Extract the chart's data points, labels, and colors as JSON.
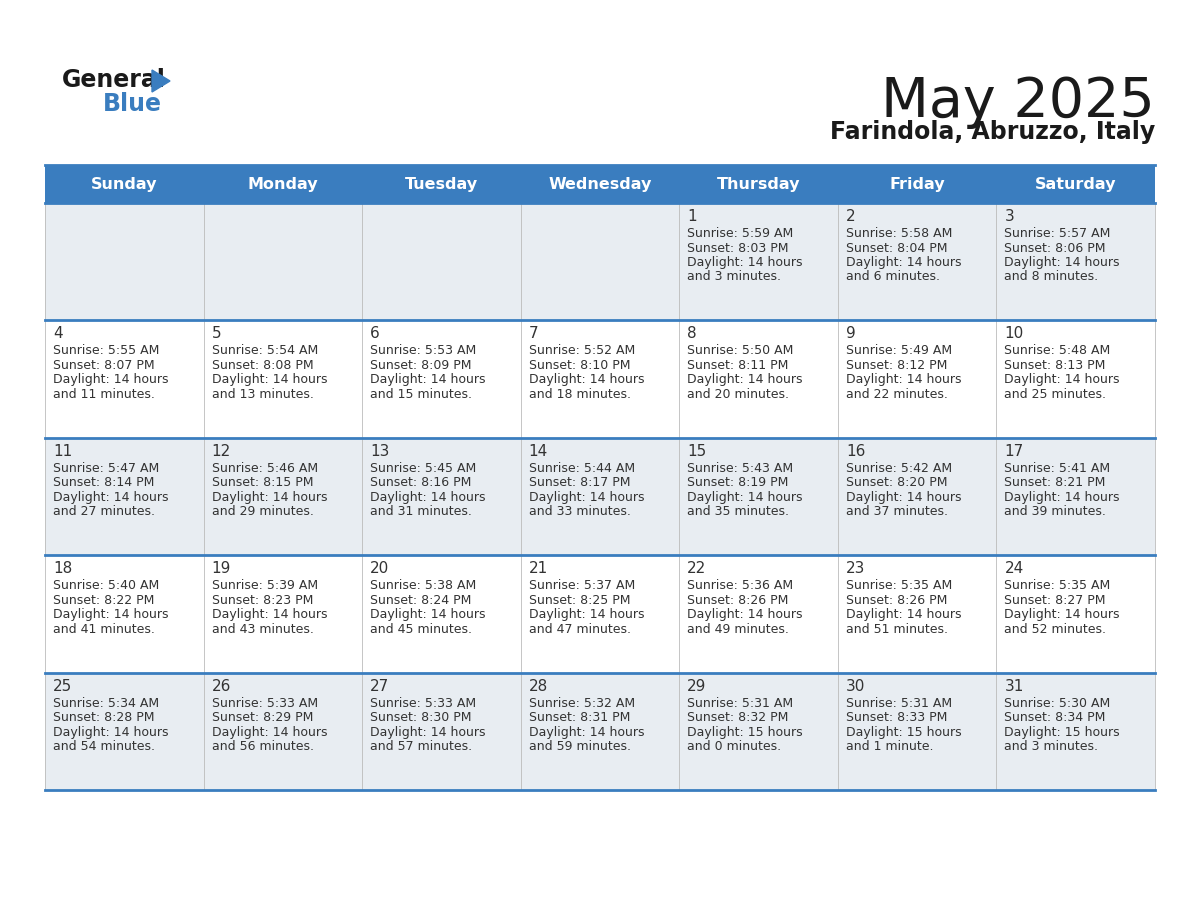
{
  "title": "May 2025",
  "subtitle": "Farindola, Abruzzo, Italy",
  "header_color": "#3a7dbf",
  "header_text_color": "#ffffff",
  "background_color": "#ffffff",
  "cell_bg_even": "#e8edf2",
  "cell_bg_odd": "#ffffff",
  "day_headers": [
    "Sunday",
    "Monday",
    "Tuesday",
    "Wednesday",
    "Thursday",
    "Friday",
    "Saturday"
  ],
  "title_color": "#1a1a1a",
  "subtitle_color": "#1a1a1a",
  "line_color": "#3a7dbf",
  "text_color": "#333333",
  "days": [
    {
      "date": 1,
      "col": 4,
      "row": 0,
      "sunrise": "5:59 AM",
      "sunset": "8:03 PM",
      "daylight": "14 hours",
      "daylight2": "and 3 minutes."
    },
    {
      "date": 2,
      "col": 5,
      "row": 0,
      "sunrise": "5:58 AM",
      "sunset": "8:04 PM",
      "daylight": "14 hours",
      "daylight2": "and 6 minutes."
    },
    {
      "date": 3,
      "col": 6,
      "row": 0,
      "sunrise": "5:57 AM",
      "sunset": "8:06 PM",
      "daylight": "14 hours",
      "daylight2": "and 8 minutes."
    },
    {
      "date": 4,
      "col": 0,
      "row": 1,
      "sunrise": "5:55 AM",
      "sunset": "8:07 PM",
      "daylight": "14 hours",
      "daylight2": "and 11 minutes."
    },
    {
      "date": 5,
      "col": 1,
      "row": 1,
      "sunrise": "5:54 AM",
      "sunset": "8:08 PM",
      "daylight": "14 hours",
      "daylight2": "and 13 minutes."
    },
    {
      "date": 6,
      "col": 2,
      "row": 1,
      "sunrise": "5:53 AM",
      "sunset": "8:09 PM",
      "daylight": "14 hours",
      "daylight2": "and 15 minutes."
    },
    {
      "date": 7,
      "col": 3,
      "row": 1,
      "sunrise": "5:52 AM",
      "sunset": "8:10 PM",
      "daylight": "14 hours",
      "daylight2": "and 18 minutes."
    },
    {
      "date": 8,
      "col": 4,
      "row": 1,
      "sunrise": "5:50 AM",
      "sunset": "8:11 PM",
      "daylight": "14 hours",
      "daylight2": "and 20 minutes."
    },
    {
      "date": 9,
      "col": 5,
      "row": 1,
      "sunrise": "5:49 AM",
      "sunset": "8:12 PM",
      "daylight": "14 hours",
      "daylight2": "and 22 minutes."
    },
    {
      "date": 10,
      "col": 6,
      "row": 1,
      "sunrise": "5:48 AM",
      "sunset": "8:13 PM",
      "daylight": "14 hours",
      "daylight2": "and 25 minutes."
    },
    {
      "date": 11,
      "col": 0,
      "row": 2,
      "sunrise": "5:47 AM",
      "sunset": "8:14 PM",
      "daylight": "14 hours",
      "daylight2": "and 27 minutes."
    },
    {
      "date": 12,
      "col": 1,
      "row": 2,
      "sunrise": "5:46 AM",
      "sunset": "8:15 PM",
      "daylight": "14 hours",
      "daylight2": "and 29 minutes."
    },
    {
      "date": 13,
      "col": 2,
      "row": 2,
      "sunrise": "5:45 AM",
      "sunset": "8:16 PM",
      "daylight": "14 hours",
      "daylight2": "and 31 minutes."
    },
    {
      "date": 14,
      "col": 3,
      "row": 2,
      "sunrise": "5:44 AM",
      "sunset": "8:17 PM",
      "daylight": "14 hours",
      "daylight2": "and 33 minutes."
    },
    {
      "date": 15,
      "col": 4,
      "row": 2,
      "sunrise": "5:43 AM",
      "sunset": "8:19 PM",
      "daylight": "14 hours",
      "daylight2": "and 35 minutes."
    },
    {
      "date": 16,
      "col": 5,
      "row": 2,
      "sunrise": "5:42 AM",
      "sunset": "8:20 PM",
      "daylight": "14 hours",
      "daylight2": "and 37 minutes."
    },
    {
      "date": 17,
      "col": 6,
      "row": 2,
      "sunrise": "5:41 AM",
      "sunset": "8:21 PM",
      "daylight": "14 hours",
      "daylight2": "and 39 minutes."
    },
    {
      "date": 18,
      "col": 0,
      "row": 3,
      "sunrise": "5:40 AM",
      "sunset": "8:22 PM",
      "daylight": "14 hours",
      "daylight2": "and 41 minutes."
    },
    {
      "date": 19,
      "col": 1,
      "row": 3,
      "sunrise": "5:39 AM",
      "sunset": "8:23 PM",
      "daylight": "14 hours",
      "daylight2": "and 43 minutes."
    },
    {
      "date": 20,
      "col": 2,
      "row": 3,
      "sunrise": "5:38 AM",
      "sunset": "8:24 PM",
      "daylight": "14 hours",
      "daylight2": "and 45 minutes."
    },
    {
      "date": 21,
      "col": 3,
      "row": 3,
      "sunrise": "5:37 AM",
      "sunset": "8:25 PM",
      "daylight": "14 hours",
      "daylight2": "and 47 minutes."
    },
    {
      "date": 22,
      "col": 4,
      "row": 3,
      "sunrise": "5:36 AM",
      "sunset": "8:26 PM",
      "daylight": "14 hours",
      "daylight2": "and 49 minutes."
    },
    {
      "date": 23,
      "col": 5,
      "row": 3,
      "sunrise": "5:35 AM",
      "sunset": "8:26 PM",
      "daylight": "14 hours",
      "daylight2": "and 51 minutes."
    },
    {
      "date": 24,
      "col": 6,
      "row": 3,
      "sunrise": "5:35 AM",
      "sunset": "8:27 PM",
      "daylight": "14 hours",
      "daylight2": "and 52 minutes."
    },
    {
      "date": 25,
      "col": 0,
      "row": 4,
      "sunrise": "5:34 AM",
      "sunset": "8:28 PM",
      "daylight": "14 hours",
      "daylight2": "and 54 minutes."
    },
    {
      "date": 26,
      "col": 1,
      "row": 4,
      "sunrise": "5:33 AM",
      "sunset": "8:29 PM",
      "daylight": "14 hours",
      "daylight2": "and 56 minutes."
    },
    {
      "date": 27,
      "col": 2,
      "row": 4,
      "sunrise": "5:33 AM",
      "sunset": "8:30 PM",
      "daylight": "14 hours",
      "daylight2": "and 57 minutes."
    },
    {
      "date": 28,
      "col": 3,
      "row": 4,
      "sunrise": "5:32 AM",
      "sunset": "8:31 PM",
      "daylight": "14 hours",
      "daylight2": "and 59 minutes."
    },
    {
      "date": 29,
      "col": 4,
      "row": 4,
      "sunrise": "5:31 AM",
      "sunset": "8:32 PM",
      "daylight": "15 hours",
      "daylight2": "and 0 minutes."
    },
    {
      "date": 30,
      "col": 5,
      "row": 4,
      "sunrise": "5:31 AM",
      "sunset": "8:33 PM",
      "daylight": "15 hours",
      "daylight2": "and 1 minute."
    },
    {
      "date": 31,
      "col": 6,
      "row": 4,
      "sunrise": "5:30 AM",
      "sunset": "8:34 PM",
      "daylight": "15 hours",
      "daylight2": "and 3 minutes."
    }
  ]
}
